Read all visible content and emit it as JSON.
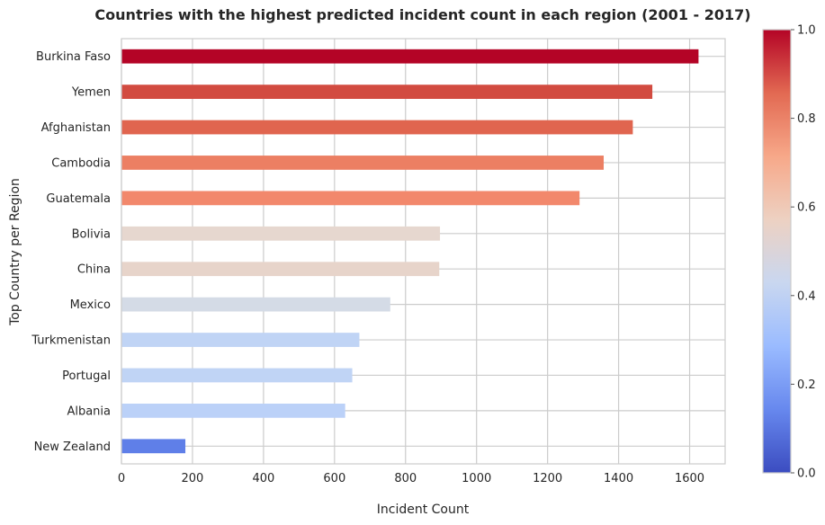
{
  "chart_data": {
    "type": "bar",
    "orientation": "horizontal",
    "title": "Countries with the highest predicted incident count in each region (2001 - 2017)",
    "xlabel": "Incident Count",
    "ylabel": "Top Country per Region",
    "xlim": [
      0,
      1700
    ],
    "x_ticks": [
      0,
      200,
      400,
      600,
      800,
      1000,
      1200,
      1400,
      1600
    ],
    "grid": true,
    "categories": [
      "Burkina Faso",
      "Yemen",
      "Afghanistan",
      "Cambodia",
      "Guatemala",
      "Bolivia",
      "China",
      "Mexico",
      "Turkmenistan",
      "Portugal",
      "Albania",
      "New Zealand"
    ],
    "values": [
      1625,
      1495,
      1440,
      1358,
      1290,
      897,
      895,
      757,
      670,
      650,
      630,
      180
    ],
    "bar_colors": [
      "#b40426",
      "#d24b40",
      "#e0654f",
      "#ec7f63",
      "#f2886c",
      "#e6d7cf",
      "#e7d4ca",
      "#d4dbe6",
      "#c0d4f5",
      "#c0d4f5",
      "#bbd1f8",
      "#5f7fe8"
    ],
    "colorbar": {
      "colormap": "coolwarm",
      "range": [
        0.0,
        1.0
      ],
      "ticks": [
        "0.0",
        "0.2",
        "0.4",
        "0.6",
        "0.8",
        "1.0"
      ],
      "stops": [
        "#3b4cc0",
        "#6788ee",
        "#9abbff",
        "#c9d7f0",
        "#edd1c2",
        "#f7a889",
        "#e26952",
        "#b40426"
      ]
    }
  }
}
